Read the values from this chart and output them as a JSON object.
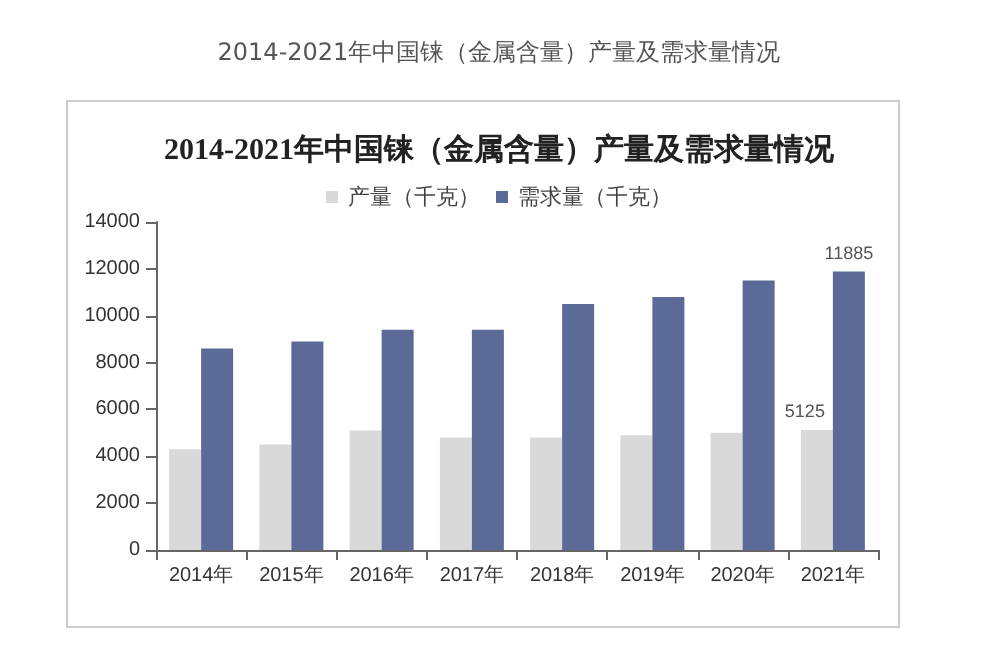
{
  "chart_data": {
    "type": "bar",
    "title": "2014-2021年中国铼（金属含量）产量及需求量情况",
    "annotations": [
      "2014-2021年中国铼（金属含量）产量及需求量情况"
    ],
    "categories": [
      "2014年",
      "2015年",
      "2016年",
      "2017年",
      "2018年",
      "2019年",
      "2020年",
      "2021年"
    ],
    "series": [
      {
        "name": "产量（千克）",
        "color": "#d9d9d9",
        "values": [
          4300,
          4500,
          5100,
          4800,
          4800,
          4900,
          5000,
          5125
        ],
        "value_labels": [
          null,
          null,
          null,
          null,
          null,
          null,
          null,
          "5125"
        ]
      },
      {
        "name": "需求量（千克）",
        "color": "#5b6a96",
        "values": [
          8600,
          8900,
          9400,
          9400,
          10500,
          10800,
          11500,
          11885
        ],
        "value_labels": [
          null,
          null,
          null,
          null,
          null,
          null,
          null,
          "11885"
        ]
      }
    ],
    "ylim": [
      0,
      14000
    ],
    "yticks": [
      0,
      2000,
      4000,
      6000,
      8000,
      10000,
      12000,
      14000
    ],
    "grid": false,
    "legend": "top"
  }
}
